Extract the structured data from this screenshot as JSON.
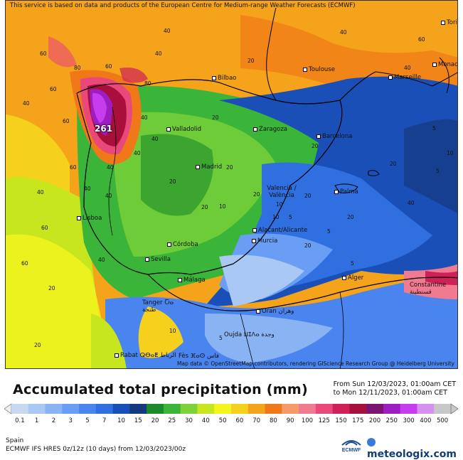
{
  "notice": "This service is based on data and products of the European Centre for Medium-range Weather Forecasts (ECMWF)",
  "attribution": "Map data © OpenStreetMap contributors, rendering GIScience Research Group @ Heidelberg University",
  "max_value": "261",
  "cities": [
    {
      "name": "Torino"
    },
    {
      "name": "Bilbao"
    },
    {
      "name": "Toulouse"
    },
    {
      "name": "Marseille"
    },
    {
      "name": "Monaco"
    },
    {
      "name": "Valladolid"
    },
    {
      "name": "Zaragoza"
    },
    {
      "name": "Barcelona"
    },
    {
      "name": "Madrid"
    },
    {
      "name": "Valencia / València"
    },
    {
      "name": "Palma"
    },
    {
      "name": "Lisboa"
    },
    {
      "name": "Alacant/Alicante"
    },
    {
      "name": "Córdoba"
    },
    {
      "name": "Murcia"
    },
    {
      "name": "Sevilla"
    },
    {
      "name": "Málaga"
    },
    {
      "name": "Alger"
    },
    {
      "name": "Constantine قسنطينة"
    },
    {
      "name": "Tanger Ⴀⴰ طنجة"
    },
    {
      "name": "Oran وهران"
    },
    {
      "name": "Oujda ⵡⵊⴷⴰ وجدة"
    },
    {
      "name": "Rabat ⵕⴱⴰⵟ الرباط"
    },
    {
      "name": "Fès ⴼⴰⵙ فاس"
    }
  ],
  "contour_labels": [
    "60",
    "80",
    "60",
    "40",
    "60",
    "40",
    "40",
    "40",
    "60",
    "20",
    "40",
    "20",
    "20",
    "10",
    "20",
    "5",
    "10",
    "5",
    "5",
    "20",
    "5",
    "5",
    "10",
    "20",
    "40",
    "20",
    "40",
    "60",
    "40",
    "20",
    "10",
    "5",
    "10",
    "20",
    "40",
    "60",
    "40",
    "20",
    "40",
    "20",
    "20",
    "60",
    "40",
    "40",
    "20",
    "80",
    "60",
    "40"
  ],
  "legend": {
    "title": "Accumulated total precipitation (mm)",
    "period_from": "From Sun 12/03/2023, 01:00am CET",
    "period_to": "to Mon 12/11/2023, 01:00am CET",
    "ticks": [
      "0.1",
      "1",
      "2",
      "3",
      "5",
      "7",
      "10",
      "15",
      "20",
      "25",
      "30",
      "40",
      "50",
      "60",
      "70",
      "80",
      "90",
      "100",
      "125",
      "150",
      "175",
      "200",
      "250",
      "300",
      "400",
      "500"
    ],
    "colors": [
      "#c7d8f0",
      "#a9c8f3",
      "#8ab3f4",
      "#6a9ef5",
      "#4a85ef",
      "#2f6fe0",
      "#1b4fb8",
      "#14397f",
      "#1a8a2a",
      "#3ab53a",
      "#7dd23a",
      "#c8e61e",
      "#f5f51e",
      "#f5d11e",
      "#f5a31a",
      "#f07818",
      "#f59a68",
      "#f07a90",
      "#e8487a",
      "#d0205a",
      "#a80f3a",
      "#7a1470",
      "#9c1ec0",
      "#c83cf0",
      "#d890f0",
      "#c8c8c8"
    ],
    "scale_unit_note": "mm"
  },
  "region": "Spain",
  "model_info": "ECMWF IFS HRES 0z/12z (10 days) from 12/03/2023/00z",
  "ecmwf_logo": "ECMWF",
  "brand": "meteologix.com"
}
